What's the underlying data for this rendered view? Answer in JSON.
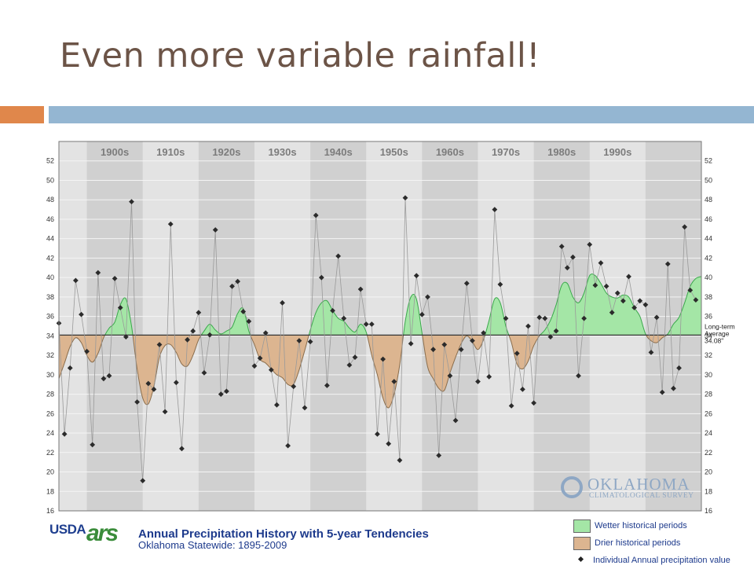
{
  "slide": {
    "title": "Even more variable rainfall!",
    "accent_orange": "#e0874b",
    "accent_blue": "#94b6d2"
  },
  "caption": {
    "title": "Annual Precipitation History with 5-year Tendencies",
    "subtitle": "Oklahoma Statewide: 1895-2009",
    "usda_label": "USDA",
    "nrcs_label": "ars"
  },
  "ocs_logo": {
    "name": "OKLAHOMA",
    "sub": "CLIMATOLOGICAL SURVEY"
  },
  "legend": {
    "wetter": "Wetter historical periods",
    "drier": "Drier historical periods",
    "individual": "Individual Annual precipitation value"
  },
  "colors": {
    "wetter": "#a4e6a6",
    "wetter_line": "#3aa84b",
    "drier": "#dcb590",
    "drier_line": "#8a6d4c",
    "plot_light": "#e3e3e3",
    "plot_dark": "#d0d0d0",
    "point": "#2b2b2b",
    "thin_line": "#9a9a9a",
    "average_line": "#333333"
  },
  "chart_data": {
    "type": "line",
    "title": "Annual Precipitation History with 5-year Tendencies",
    "subtitle": "Oklahoma Statewide: 1895-2009",
    "xlabel": "",
    "ylabel": "",
    "xlim": [
      1895,
      2010
    ],
    "ylim": [
      16,
      54
    ],
    "yticks": [
      16,
      18,
      20,
      22,
      24,
      26,
      28,
      30,
      32,
      34,
      36,
      38,
      40,
      42,
      44,
      46,
      48,
      50,
      52
    ],
    "decades": [
      "1900s",
      "1910s",
      "1920s",
      "1930s",
      "1940s",
      "1950s",
      "1960s",
      "1970s",
      "1980s",
      "1990s"
    ],
    "average": 34.08,
    "average_label": [
      "Long-term",
      "Average",
      "34.08\""
    ],
    "grid": true,
    "annual": {
      "x": [
        1895,
        1896,
        1897,
        1898,
        1899,
        1900,
        1901,
        1902,
        1903,
        1904,
        1905,
        1906,
        1907,
        1908,
        1909,
        1910,
        1911,
        1912,
        1913,
        1914,
        1915,
        1916,
        1917,
        1918,
        1919,
        1920,
        1921,
        1922,
        1923,
        1924,
        1925,
        1926,
        1927,
        1928,
        1929,
        1930,
        1931,
        1932,
        1933,
        1934,
        1935,
        1936,
        1937,
        1938,
        1939,
        1940,
        1941,
        1942,
        1943,
        1944,
        1945,
        1946,
        1947,
        1948,
        1949,
        1950,
        1951,
        1952,
        1953,
        1954,
        1955,
        1956,
        1957,
        1958,
        1959,
        1960,
        1961,
        1962,
        1963,
        1964,
        1965,
        1966,
        1967,
        1968,
        1969,
        1970,
        1971,
        1972,
        1973,
        1974,
        1975,
        1976,
        1977,
        1978,
        1979,
        1980,
        1981,
        1982,
        1983,
        1984,
        1985,
        1986,
        1987,
        1988,
        1989,
        1990,
        1991,
        1992,
        1993,
        1994,
        1995,
        1996,
        1997,
        1998,
        1999,
        2000,
        2001,
        2002,
        2003,
        2004,
        2005,
        2006,
        2007,
        2008,
        2009
      ],
      "y": [
        35.3,
        23.9,
        30.7,
        39.7,
        36.2,
        32.4,
        22.8,
        40.5,
        29.6,
        29.9,
        39.9,
        36.9,
        33.9,
        47.8,
        27.2,
        19.1,
        29.1,
        28.5,
        33.1,
        26.2,
        45.5,
        29.2,
        22.4,
        33.6,
        34.5,
        36.4,
        30.2,
        34.1,
        44.9,
        28.0,
        28.3,
        39.1,
        39.6,
        36.5,
        35.5,
        30.9,
        31.7,
        34.3,
        30.5,
        26.9,
        37.4,
        22.7,
        28.8,
        33.5,
        26.6,
        33.4,
        46.4,
        40.0,
        28.9,
        36.6,
        42.2,
        35.8,
        31.0,
        31.8,
        38.8,
        35.2,
        35.2,
        23.9,
        31.6,
        22.9,
        29.3,
        21.2,
        48.2,
        33.2,
        40.2,
        36.2,
        38.0,
        32.6,
        21.7,
        33.1,
        29.9,
        25.3,
        32.6,
        39.4,
        33.5,
        29.3,
        34.3,
        29.8,
        47.0,
        39.3,
        35.8,
        26.8,
        32.2,
        28.5,
        35.0,
        27.1,
        35.9,
        35.8,
        33.9,
        34.5,
        43.2,
        41.0,
        42.1,
        29.9,
        35.8,
        43.4,
        39.2,
        41.5,
        39.1,
        36.4,
        38.4,
        37.6,
        40.1,
        36.9,
        37.6,
        37.2,
        32.3,
        35.9,
        28.2,
        41.4,
        28.6,
        30.7,
        45.2,
        38.7,
        37.7
      ]
    },
    "tendency": {
      "x": [
        1895,
        1896,
        1897,
        1898,
        1899,
        1900,
        1901,
        1902,
        1903,
        1904,
        1905,
        1906,
        1907,
        1908,
        1909,
        1910,
        1911,
        1912,
        1913,
        1914,
        1915,
        1916,
        1917,
        1918,
        1919,
        1920,
        1921,
        1922,
        1923,
        1924,
        1925,
        1926,
        1927,
        1928,
        1929,
        1930,
        1931,
        1932,
        1933,
        1934,
        1935,
        1936,
        1937,
        1938,
        1939,
        1940,
        1941,
        1942,
        1943,
        1944,
        1945,
        1946,
        1947,
        1948,
        1949,
        1950,
        1951,
        1952,
        1953,
        1954,
        1955,
        1956,
        1957,
        1958,
        1959,
        1960,
        1961,
        1962,
        1963,
        1964,
        1965,
        1966,
        1967,
        1968,
        1969,
        1970,
        1971,
        1972,
        1973,
        1974,
        1975,
        1976,
        1977,
        1978,
        1979,
        1980,
        1981,
        1982,
        1983,
        1984,
        1985,
        1986,
        1987,
        1988,
        1989,
        1990,
        1991,
        1992,
        1993,
        1994,
        1995,
        1996,
        1997,
        1998,
        1999,
        2000,
        2001,
        2002,
        2003,
        2004,
        2005,
        2006,
        2007,
        2008,
        2009,
        2010
      ],
      "y": [
        29.6,
        31.2,
        32.9,
        33.8,
        33.3,
        32.0,
        31.3,
        32.2,
        33.8,
        34.8,
        35.4,
        37.2,
        37.8,
        35.0,
        30.6,
        27.6,
        27.0,
        28.8,
        31.8,
        33.0,
        33.1,
        32.3,
        31.1,
        30.9,
        32.0,
        33.6,
        34.5,
        35.2,
        34.6,
        34.2,
        34.5,
        34.9,
        36.3,
        36.8,
        34.5,
        33.1,
        31.6,
        31.2,
        30.6,
        30.0,
        29.7,
        29.0,
        29.0,
        30.5,
        32.5,
        34.6,
        36.4,
        37.4,
        37.6,
        36.6,
        35.8,
        35.5,
        34.8,
        34.4,
        35.2,
        34.4,
        32.0,
        30.0,
        27.6,
        26.6,
        28.0,
        31.0,
        35.5,
        38.0,
        37.8,
        34.3,
        30.8,
        29.6,
        28.6,
        28.4,
        30.2,
        31.8,
        33.2,
        34.0,
        33.4,
        32.6,
        33.6,
        35.6,
        37.8,
        37.4,
        35.0,
        33.3,
        31.1,
        30.6,
        31.4,
        33.0,
        34.0,
        34.6,
        35.6,
        37.2,
        39.2,
        39.4,
        38.0,
        37.4,
        38.4,
        40.2,
        40.2,
        39.4,
        38.4,
        38.0,
        37.9,
        38.2,
        38.0,
        36.9,
        36.0,
        34.2,
        33.5,
        33.3,
        33.8,
        34.2,
        35.2,
        35.9,
        37.4,
        39.1,
        39.9,
        40.1
      ]
    }
  }
}
